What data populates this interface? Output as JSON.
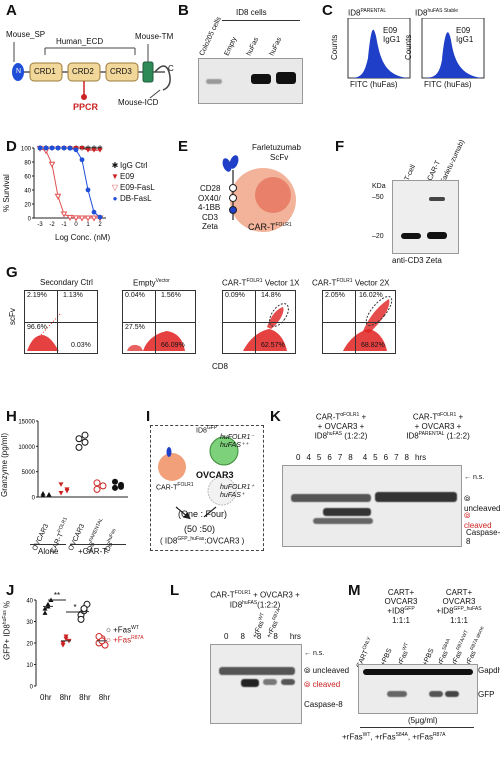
{
  "panels": {
    "A": {
      "letter": "A",
      "mouse_sp": "Mouse_SP",
      "human_ecd": "Human_ECD",
      "mouse_tm": "Mouse-TM",
      "crd1": "CRD1",
      "crd2": "CRD2",
      "crd3": "CRD3",
      "n": "N",
      "c": "C",
      "ppcr": "PPCR",
      "mouse_icd": "Mouse-ICD"
    },
    "B": {
      "letter": "B",
      "group": "ID8 cells",
      "lanes": [
        "Colo205 cells",
        "Empty",
        "huFas",
        "huFas"
      ]
    },
    "C": {
      "letter": "C",
      "title1": "ID8",
      "title1_sup": "PARENTAL",
      "title2": "ID8",
      "title2_sup": "huFAS Stable",
      "leg1": "E09",
      "leg2": "IgG1",
      "ylabel": "Counts",
      "xlabel": "FITC (huFas)"
    },
    "D": {
      "letter": "D",
      "ylabel": "% Survival",
      "xlabel": "Log Conc. (nM)",
      "yticks": [
        "100",
        "80",
        "60",
        "40",
        "20",
        "0"
      ],
      "xticks": [
        "-3",
        "-2",
        "-1",
        "0",
        "1",
        "2"
      ],
      "legend": [
        "IgG Ctrl",
        "E09",
        "E09-FasL",
        "DB-FasL"
      ],
      "colors": {
        "igg": "#333333",
        "e09": "#cc2222",
        "e09fasl": "#e05050",
        "dbfasl": "#1f4fd8"
      }
    },
    "E": {
      "letter": "E",
      "scfv1": "Farletuzumab",
      "scfv2": "ScFv",
      "cd28": "CD28",
      "ox40": "OX40/",
      "bb": "4-1BB",
      "cd3": "CD3",
      "zeta": "Zeta",
      "car": "CAR-T",
      "car_sup": "FOLR1"
    },
    "F": {
      "letter": "F",
      "kda": "KDa",
      "m50": "50",
      "m20": "20",
      "lanes": [
        "T-cell",
        "CAR-T",
        "(Farletu-zumab)"
      ],
      "caption": "anti-CD3 Zeta"
    },
    "G": {
      "letter": "G",
      "plots": [
        {
          "title": "Secondary Ctrl",
          "q": [
            "2.19%",
            "1.13%",
            "96.6%",
            "0.03%"
          ]
        },
        {
          "title": "Empty",
          "title_sup": "Vector",
          "q": [
            "0.04%",
            "1.56%",
            "27.5%",
            "66.09%"
          ]
        },
        {
          "title": "CAR-T",
          "title_sup": "FOLR1",
          "title_suffix": "Vector 1X",
          "q": [
            "0.09%",
            "14.8%",
            "",
            "62.57%"
          ]
        },
        {
          "title": "CAR-T",
          "title_sup": "FOLR1",
          "title_suffix": "Vector 2X",
          "q": [
            "2.05%",
            "16.02%",
            "",
            "68.82%"
          ]
        }
      ],
      "ylabel": "scFv",
      "xlabel": "CD8",
      "xticks": [
        "0",
        "10",
        "10",
        "10",
        "10"
      ]
    },
    "H": {
      "letter": "H",
      "ylabel": "Granzyme (pg/ml)",
      "yticks": [
        "15000",
        "10000",
        "5000",
        "0"
      ],
      "cats": [
        "OVCAR3",
        "CAR-T",
        "OVCAR3",
        "ID8",
        "ID8"
      ],
      "alone": "Alone",
      "plus": "+CAR-T"
    },
    "I": {
      "letter": "I",
      "id8": "ID8",
      "huFas": "huFAS",
      "folr1a": "huFOLR1",
      "fasa": "huFAS",
      "car": "CAR-T",
      "ovcar": "OVCAR3",
      "folr1b": "huFOLR1",
      "fasb": "huFAS",
      "ratio1": "(One : Four)",
      "ratio2": "(50 :50)",
      "ratio3": "( ID8",
      "ratio3b": ":OVCAR3 )"
    },
    "J": {
      "letter": "J",
      "ylabel": "GFP+ ID8",
      "yticks": [
        "40",
        "30",
        "20",
        "10",
        "0"
      ],
      "xcats": [
        "0hr",
        "8hr",
        "8hr",
        "8hr"
      ],
      "sig1": "**",
      "sig2": "*",
      "legend": [
        "+Fas",
        "+Fas"
      ],
      "legsup": [
        "WT",
        "R87A"
      ]
    },
    "K": {
      "letter": "K",
      "hdr1": "CAR-T",
      "hdr1b": "+ OVCAR3 +",
      "hdr1c": "ID8",
      "hdr1d": "(1:2:2)",
      "hdr2": "CAR-T",
      "hdr2b": "+ OVCAR3 +",
      "hdr2c": "ID8",
      "hdr2d": "(1:2:2)",
      "times": [
        "0",
        "4",
        "5",
        "6",
        "7",
        "8",
        "4",
        "5",
        "6",
        "7",
        "8"
      ],
      "hrs": "hrs",
      "ns": "n.s.",
      "uncleaved": "uncleaved",
      "cleaved": "cleaved",
      "caspase": "Caspase-8"
    },
    "L": {
      "letter": "L",
      "hdr1": "CAR-T",
      "hdr2": "+ OVCAR3 +",
      "hdr3": "ID8",
      "hdr4": "(1:2:2)",
      "lanes": [
        "+rFas",
        "+rFas"
      ],
      "times": [
        "0",
        "8",
        "8",
        "8"
      ],
      "hrs": "hrs",
      "ns": "n.s.",
      "uncleaved": "uncleaved",
      "cleaved": "cleaved",
      "caspase": "Caspase-8"
    },
    "M": {
      "letter": "M",
      "grp1": "CART+",
      "grp1b": "OVCAR3",
      "grp1c": "+ID8",
      "grp1d": "1:1:1",
      "grp2": "CART+",
      "grp2b": "OVCAR3",
      "grp2c": "+ID8",
      "grp2d": "1:1:1",
      "lanes": [
        "CART",
        "+PBS",
        "+rFas",
        "+PBS",
        "+rFas",
        "+rFas",
        "+rFas"
      ],
      "gapdh": "Gapdh",
      "gfp": "GFP",
      "dose": "(5μg/ml)",
      "footer": "+rFas"
    }
  }
}
